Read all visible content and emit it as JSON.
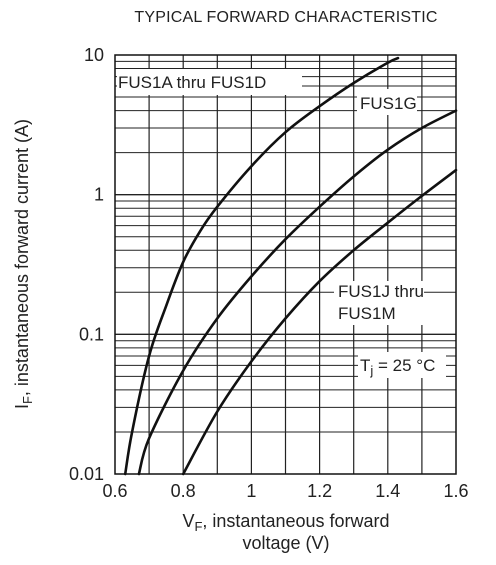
{
  "chart_data": {
    "type": "line",
    "title": "TYPICAL FORWARD CHARACTERISTIC",
    "ylabel_main": "I",
    "ylabel_sub": "F",
    "ylabel_rest": ", instantaneous forward current  (A)",
    "xlabel_main": "V",
    "xlabel_sub": "F",
    "xlabel_rest": ", instantaneous forward",
    "xlabel_line2": "voltage (V)",
    "xscale": "linear",
    "yscale": "log",
    "xlim": [
      0.6,
      1.6
    ],
    "ylim": [
      0.01,
      10
    ],
    "x_ticks": [
      0.6,
      0.8,
      1,
      1.2,
      1.4,
      1.6
    ],
    "x_tick_labels": [
      "0.6",
      "0.8",
      "1",
      "1.2",
      "1.4",
      "1.6"
    ],
    "y_ticks": [
      0.01,
      0.1,
      1,
      10
    ],
    "y_tick_labels": [
      "0.01",
      "0.1",
      "1",
      "10"
    ],
    "grid": true,
    "line_color": "#111111",
    "series": [
      {
        "name": "FUS1A thru FUS1D",
        "points": [
          [
            0.63,
            0.01
          ],
          [
            0.65,
            0.02
          ],
          [
            0.7,
            0.07
          ],
          [
            0.75,
            0.16
          ],
          [
            0.8,
            0.33
          ],
          [
            0.85,
            0.55
          ],
          [
            0.9,
            0.82
          ],
          [
            1.0,
            1.6
          ],
          [
            1.1,
            2.8
          ],
          [
            1.2,
            4.3
          ],
          [
            1.3,
            6.3
          ],
          [
            1.4,
            8.8
          ],
          [
            1.43,
            9.5
          ]
        ]
      },
      {
        "name": "FUS1G",
        "points": [
          [
            0.67,
            0.01
          ],
          [
            0.7,
            0.018
          ],
          [
            0.8,
            0.055
          ],
          [
            0.9,
            0.13
          ],
          [
            1.0,
            0.26
          ],
          [
            1.1,
            0.48
          ],
          [
            1.2,
            0.82
          ],
          [
            1.3,
            1.35
          ],
          [
            1.4,
            2.1
          ],
          [
            1.5,
            3.0
          ],
          [
            1.6,
            4.0
          ]
        ]
      },
      {
        "name": "FUS1J thru FUS1M",
        "points": [
          [
            0.8,
            0.01
          ],
          [
            0.9,
            0.028
          ],
          [
            1.0,
            0.064
          ],
          [
            1.1,
            0.13
          ],
          [
            1.2,
            0.24
          ],
          [
            1.3,
            0.4
          ],
          [
            1.4,
            0.63
          ],
          [
            1.5,
            0.98
          ],
          [
            1.6,
            1.5
          ]
        ]
      }
    ],
    "labels": {
      "fus1a_line": "FUS1A thru FUS1D",
      "fus1g_line": "FUS1G",
      "fus1j_line1": "FUS1J thru",
      "fus1j_line2": "FUS1M",
      "temp_main": "T",
      "temp_sub": "j",
      "temp_rest": " = 25 °C"
    }
  }
}
